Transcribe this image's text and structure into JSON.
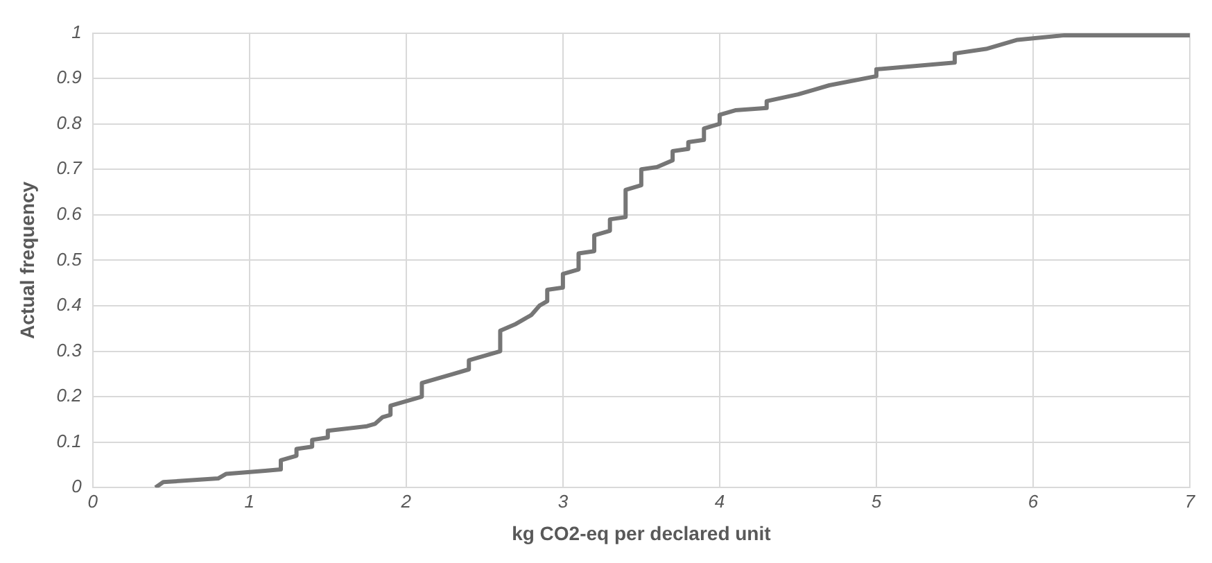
{
  "chart_data": {
    "type": "line",
    "xlabel": "kg CO2-eq per declared unit",
    "ylabel": "Actual frequency",
    "xlim": [
      0,
      7
    ],
    "xticks": [
      0,
      1,
      2,
      3,
      4,
      5,
      6,
      7
    ],
    "ylim": [
      0,
      1
    ],
    "yticks": [
      0,
      0.1,
      0.2,
      0.3,
      0.4,
      0.5,
      0.6,
      0.7,
      0.8,
      0.9,
      1
    ],
    "grid": true,
    "marker": "none",
    "line_style": "solid",
    "series": [
      {
        "color": "#767676",
        "x": [
          0.4,
          0.45,
          0.8,
          0.85,
          1.1,
          1.2,
          1.2,
          1.3,
          1.3,
          1.4,
          1.4,
          1.5,
          1.5,
          1.75,
          1.8,
          1.85,
          1.9,
          1.9,
          2.0,
          2.1,
          2.1,
          2.3,
          2.4,
          2.4,
          2.5,
          2.6,
          2.6,
          2.7,
          2.75,
          2.8,
          2.85,
          2.9,
          2.9,
          3.0,
          3.0,
          3.1,
          3.1,
          3.2,
          3.2,
          3.3,
          3.3,
          3.4,
          3.4,
          3.5,
          3.5,
          3.6,
          3.7,
          3.7,
          3.8,
          3.8,
          3.9,
          3.9,
          4.0,
          4.0,
          4.1,
          4.3,
          4.3,
          4.5,
          4.6,
          4.7,
          5.0,
          5.0,
          5.5,
          5.5,
          5.7,
          5.9,
          6.2,
          7.0
        ],
        "values": [
          0.0,
          0.012,
          0.02,
          0.03,
          0.037,
          0.04,
          0.06,
          0.07,
          0.085,
          0.09,
          0.105,
          0.11,
          0.125,
          0.135,
          0.14,
          0.155,
          0.16,
          0.18,
          0.19,
          0.2,
          0.23,
          0.25,
          0.26,
          0.28,
          0.29,
          0.3,
          0.345,
          0.36,
          0.37,
          0.38,
          0.4,
          0.41,
          0.435,
          0.44,
          0.47,
          0.48,
          0.515,
          0.52,
          0.555,
          0.565,
          0.59,
          0.595,
          0.655,
          0.665,
          0.7,
          0.705,
          0.72,
          0.74,
          0.745,
          0.76,
          0.765,
          0.79,
          0.8,
          0.82,
          0.83,
          0.835,
          0.85,
          0.865,
          0.875,
          0.885,
          0.905,
          0.92,
          0.935,
          0.955,
          0.965,
          0.985,
          0.995,
          0.995
        ]
      }
    ]
  }
}
